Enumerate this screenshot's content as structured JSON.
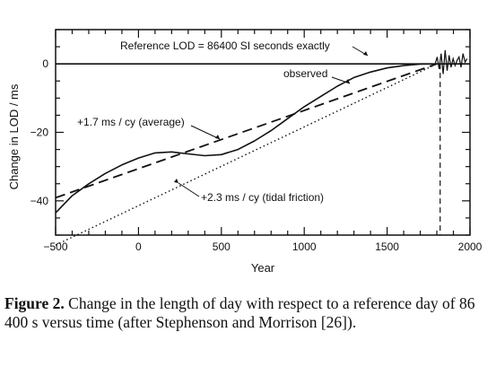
{
  "chart_data": {
    "type": "line",
    "xlabel": "Year",
    "ylabel": "Change in LOD / ms",
    "xlim": [
      -500,
      2000
    ],
    "ylim": [
      -50,
      10
    ],
    "x_ticks": [
      -500,
      0,
      500,
      1000,
      1500,
      2000
    ],
    "y_ticks": [
      0,
      -20,
      -40
    ],
    "series": [
      {
        "name": "observed",
        "style": "solid",
        "x": [
          -500,
          -400,
          -300,
          -200,
          -100,
          0,
          100,
          200,
          300,
          400,
          500,
          600,
          700,
          800,
          900,
          1000,
          1100,
          1200,
          1300,
          1400,
          1500,
          1600,
          1700,
          1800
        ],
        "y": [
          -43.5,
          -38.5,
          -35,
          -32,
          -29.5,
          -27.5,
          -26,
          -25.7,
          -26.3,
          -26.8,
          -26.5,
          -25,
          -22.5,
          -19.5,
          -16,
          -12.5,
          -9.5,
          -6.5,
          -4,
          -2.4,
          -1.2,
          -0.5,
          -0.1,
          0
        ]
      },
      {
        "name": "+1.7 ms / cy (average)",
        "style": "dashed",
        "x": [
          -500,
          1800
        ],
        "y": [
          -39.1,
          0
        ]
      },
      {
        "name": "+2.3 ms / cy (tidal friction)",
        "style": "dotted",
        "x": [
          -500,
          1800
        ],
        "y": [
          -52.9,
          0
        ]
      },
      {
        "name": "Reference LOD = 86400 SI seconds exactly",
        "style": "solid",
        "x": [
          -500,
          2000
        ],
        "y": [
          0,
          0
        ]
      }
    ],
    "annotations": [
      {
        "text": "Reference LOD = 86400 SI seconds exactly"
      },
      {
        "text": "observed"
      },
      {
        "text": "+1.7 ms / cy (average)"
      },
      {
        "text": "+2.3 ms / cy (tidal friction)"
      }
    ],
    "vertical_marker": {
      "x": 1820,
      "style": "dashed"
    },
    "grid": false
  },
  "caption": {
    "label": "Figure 2.",
    "text": " Change in the length of day with respect to a reference day of 86 400 s versus time (after Stephenson and Morrison [26])."
  }
}
